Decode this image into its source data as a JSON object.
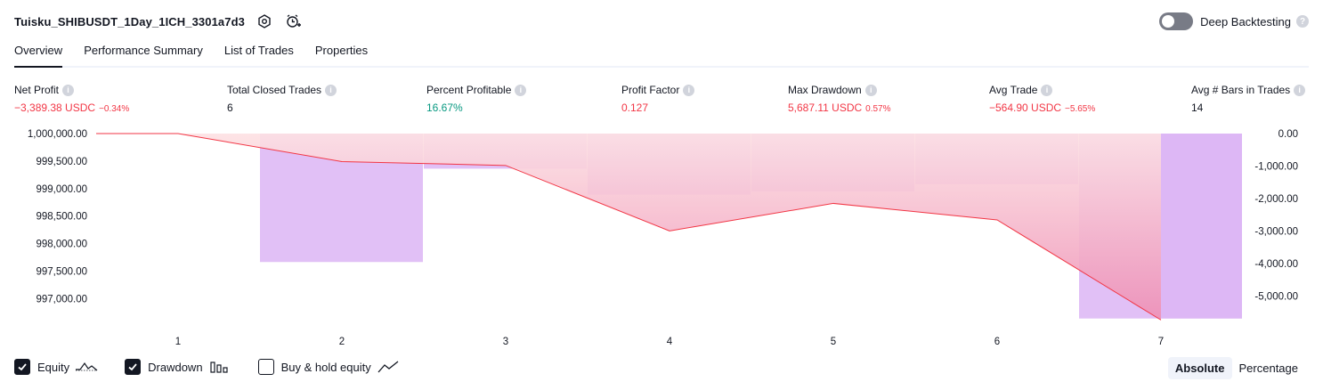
{
  "header": {
    "title": "Tuisku_SHIBUSDT_1Day_1ICH_3301a7d3"
  },
  "deep_backtesting": {
    "label": "Deep Backtesting",
    "enabled": false
  },
  "tabs": [
    {
      "label": "Overview",
      "active": true
    },
    {
      "label": "Performance Summary",
      "active": false
    },
    {
      "label": "List of Trades",
      "active": false
    },
    {
      "label": "Properties",
      "active": false
    }
  ],
  "metrics": {
    "net_profit": {
      "label": "Net Profit",
      "value": "−3,389.38 USDC",
      "pct": "−0.34%"
    },
    "total_closed_trades": {
      "label": "Total Closed Trades",
      "value": "6"
    },
    "percent_profitable": {
      "label": "Percent Profitable",
      "value": "16.67%"
    },
    "profit_factor": {
      "label": "Profit Factor",
      "value": "0.127"
    },
    "max_drawdown": {
      "label": "Max Drawdown",
      "value": "5,687.11 USDC",
      "pct": "0.57%"
    },
    "avg_trade": {
      "label": "Avg Trade",
      "value": "−564.90 USDC",
      "pct": "−5.65%"
    },
    "avg_bars": {
      "label": "Avg # Bars in Trades",
      "value": "14"
    }
  },
  "chart_data": {
    "type": "line",
    "x_ticks": [
      "1",
      "2",
      "3",
      "4",
      "5",
      "6",
      "7"
    ],
    "left_ticks": [
      "1,000,000.00",
      "999,500.00",
      "999,000.00",
      "998,500.00",
      "998,000.00",
      "997,500.00",
      "997,000.00"
    ],
    "right_ticks": [
      "0.00",
      "-1,000.00",
      "-2,000.00",
      "-3,000.00",
      "-4,000.00",
      "-5,000.00"
    ],
    "left_ylim": [
      996600,
      1000000
    ],
    "right_ylim": [
      -5750,
      0
    ],
    "equity": {
      "x": [
        0.5,
        1,
        2,
        3,
        4,
        5,
        6,
        7
      ],
      "values": [
        1000000,
        1000000,
        999490,
        999420,
        998230,
        998730,
        998430,
        996610
      ]
    },
    "drawdown": {
      "x": [
        2,
        3,
        4,
        5,
        6,
        7,
        7.5
      ],
      "values": [
        -3950,
        -1080,
        -1880,
        -1780,
        -1560,
        -5687,
        -5687
      ]
    },
    "colors": {
      "equity_line": "#f23645",
      "equity_fill_top": "#fde1e3",
      "equity_fill_bottom": "#ee8fb5",
      "drawdown_fill": "#dcb5f5"
    }
  },
  "legend": {
    "items": [
      {
        "label": "Equity",
        "checked": true,
        "icon": "equity-wave-icon"
      },
      {
        "label": "Drawdown",
        "checked": true,
        "icon": "drawdown-bars-icon"
      },
      {
        "label": "Buy & hold equity",
        "checked": false,
        "icon": "buyhold-line-icon"
      }
    ]
  },
  "modes": [
    {
      "label": "Absolute",
      "active": true
    },
    {
      "label": "Percentage",
      "active": false
    }
  ]
}
